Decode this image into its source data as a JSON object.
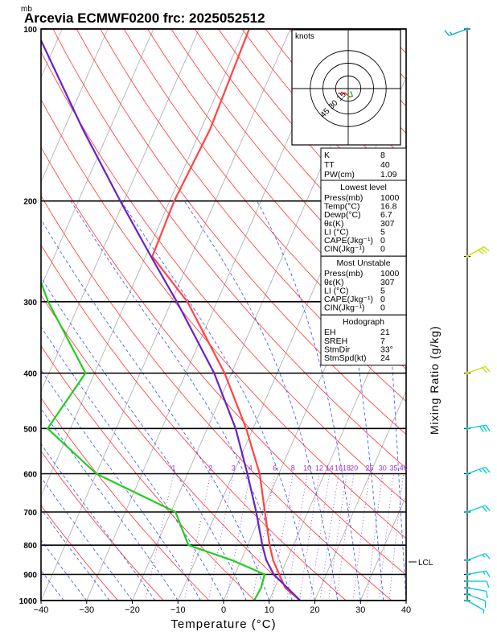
{
  "header": {
    "unit_label": "mb",
    "title": "Arcevia ECMWF0200 frc: 2025052512"
  },
  "chart_data": {
    "type": "skew-t",
    "x_axis": {
      "label": "Temperature (°C)",
      "range": [
        -40,
        40
      ],
      "ticks": [
        -40,
        -30,
        -20,
        -10,
        0,
        10,
        20,
        30,
        40
      ]
    },
    "y_axis": {
      "unit": "mb",
      "scale": "log",
      "range": [
        1000,
        100
      ],
      "ticks": [
        100,
        200,
        300,
        400,
        500,
        600,
        700,
        800,
        900,
        1000
      ]
    },
    "right_axis_label": "Mixing Ratio (g/kg)",
    "mixing_ratio_labels": [
      "1",
      "2",
      "3",
      "4",
      "6",
      "8",
      "10",
      "12",
      "14",
      "16",
      "18",
      "20",
      "25",
      "30",
      "35",
      "40"
    ],
    "lcl_label": "LCL",
    "series": [
      {
        "role": "temperature",
        "color": "#ff4444",
        "points": [
          [
            1000,
            16.8
          ],
          [
            950,
            12.3
          ],
          [
            900,
            9.7
          ],
          [
            850,
            7.0
          ],
          [
            800,
            4.8
          ],
          [
            700,
            0.6
          ],
          [
            600,
            -4.2
          ],
          [
            500,
            -11.5
          ],
          [
            400,
            -21.5
          ],
          [
            300,
            -36.5
          ],
          [
            250,
            -48.5
          ],
          [
            200,
            -49
          ],
          [
            150,
            -48
          ],
          [
            100,
            -49
          ]
        ]
      },
      {
        "role": "dewpoint",
        "color": "#22cc22",
        "points": [
          [
            1000,
            6.7
          ],
          [
            950,
            7.0
          ],
          [
            900,
            6.5
          ],
          [
            850,
            -2
          ],
          [
            800,
            -13
          ],
          [
            700,
            -19
          ],
          [
            600,
            -40
          ],
          [
            500,
            -55
          ],
          [
            400,
            -52
          ],
          [
            300,
            -67
          ],
          [
            250,
            -75
          ],
          [
            200,
            -83
          ],
          [
            150,
            -95
          ],
          [
            100,
            -110
          ]
        ]
      },
      {
        "role": "parcel",
        "color": "#6622cc",
        "points": [
          [
            1000,
            16.8
          ],
          [
            900,
            8.5
          ],
          [
            850,
            5.5
          ],
          [
            800,
            3.2
          ],
          [
            700,
            -1.3
          ],
          [
            600,
            -6.9
          ],
          [
            500,
            -13.8
          ],
          [
            400,
            -23.8
          ],
          [
            300,
            -38.8
          ],
          [
            250,
            -48.8
          ],
          [
            200,
            -60.8
          ],
          [
            150,
            -75.8
          ],
          [
            100,
            -95.8
          ]
        ]
      }
    ],
    "hodograph": {
      "unit_label": "knots",
      "ring_labels": [
        "15",
        "30",
        "45"
      ],
      "ring_values": [
        15,
        30,
        45
      ],
      "trace": [
        [
          3,
          -3
        ],
        [
          5,
          -9
        ],
        [
          2,
          -10
        ],
        [
          -4,
          -5
        ],
        [
          -12,
          -6
        ]
      ]
    }
  },
  "indices": {
    "K": "8",
    "TT": "40",
    "PW_label": "PW(cm)",
    "PW": "1.09"
  },
  "lowest_level": {
    "header": "Lowest level",
    "rows": [
      {
        "label": "Press(mb)",
        "value": "1000"
      },
      {
        "label": "Temp(°C)",
        "value": "16.8"
      },
      {
        "label": "Dewp(°C)",
        "value": "6.7"
      },
      {
        "label": "θε(K)",
        "value": "307"
      },
      {
        "label": "LI (°C)",
        "value": "5"
      },
      {
        "label": "CAPE(Jkg⁻¹)",
        "value": "0"
      },
      {
        "label": "CIN(Jkg⁻¹)",
        "value": "0"
      }
    ]
  },
  "most_unstable": {
    "header": "Most Unstable",
    "rows": [
      {
        "label": "Press(mb)",
        "value": "1000"
      },
      {
        "label": "θε(K)",
        "value": "307"
      },
      {
        "label": "LI (°C)",
        "value": "5"
      },
      {
        "label": "CAPE(Jkg⁻¹)",
        "value": "0"
      },
      {
        "label": "CIN(Jkg⁻¹)",
        "value": "0"
      }
    ]
  },
  "hodograph_box": {
    "header": "Hodograph",
    "rows": [
      {
        "label": "EH",
        "value": "21"
      },
      {
        "label": "SREH",
        "value": "7"
      },
      {
        "label": "StmDir",
        "value": "33°"
      },
      {
        "label": "StmSpd(kt)",
        "value": "24"
      }
    ]
  },
  "wind_profile": {
    "colors": {
      "low": "#00cccc",
      "mid": "#ccdd00",
      "top": "#00aacc"
    },
    "barbs": [
      {
        "p": 1000,
        "dir": 120,
        "kt": 5,
        "color": "#00cccc"
      },
      {
        "p": 975,
        "dir": 110,
        "kt": 10,
        "color": "#00cccc"
      },
      {
        "p": 950,
        "dir": 100,
        "kt": 10,
        "color": "#00cccc"
      },
      {
        "p": 925,
        "dir": 90,
        "kt": 10,
        "color": "#00cccc"
      },
      {
        "p": 900,
        "dir": 80,
        "kt": 15,
        "color": "#00cccc"
      },
      {
        "p": 850,
        "dir": 70,
        "kt": 15,
        "color": "#00cccc"
      },
      {
        "p": 700,
        "dir": 70,
        "kt": 20,
        "color": "#00cccc"
      },
      {
        "p": 600,
        "dir": 70,
        "kt": 25,
        "color": "#00cccc"
      },
      {
        "p": 500,
        "dir": 80,
        "kt": 30,
        "color": "#00cccc"
      },
      {
        "p": 400,
        "dir": 70,
        "kt": 20,
        "color": "#ccdd00"
      },
      {
        "p": 250,
        "dir": 60,
        "kt": 30,
        "color": "#ccdd00"
      },
      {
        "p": 100,
        "dir": 250,
        "kt": 15,
        "color": "#00aacc"
      }
    ]
  }
}
